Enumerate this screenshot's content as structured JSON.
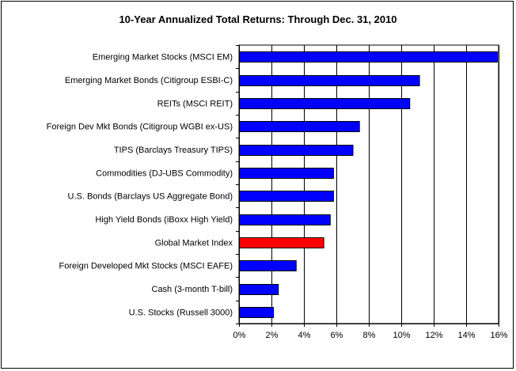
{
  "chart_data": {
    "type": "bar",
    "orientation": "horizontal",
    "title": "10-Year Annualized Total Returns: Through Dec. 31, 2010",
    "xlabel": "",
    "ylabel": "",
    "categories": [
      "Emerging Market Stocks (MSCI EM)",
      "Emerging Market Bonds (Citigroup ESBI-C)",
      "REITs (MSCI REIT)",
      "Foreign Dev Mkt Bonds (Citigroup WGBI ex-US)",
      "TIPS (Barclays Treasury TIPS)",
      "Commodities (DJ-UBS Commodity)",
      "U.S. Bonds (Barclays US Aggregate Bond)",
      "High Yield Bonds (iBoxx High Yield)",
      "Global Market Index",
      "Foreign Developed Mkt Stocks (MSCI EAFE)",
      "Cash  (3-month T-bill)",
      "U.S. Stocks (Russell 3000)"
    ],
    "values": [
      15.9,
      11.1,
      10.5,
      7.4,
      7.0,
      5.8,
      5.8,
      5.6,
      5.2,
      3.5,
      2.4,
      2.1
    ],
    "xlim": [
      0,
      16
    ],
    "x_ticks": [
      0,
      2,
      4,
      6,
      8,
      10,
      12,
      14,
      16
    ],
    "x_tick_labels": [
      "0%",
      "2%",
      "4%",
      "6%",
      "8%",
      "10%",
      "12%",
      "14%",
      "16%"
    ],
    "grid": "vertical",
    "legend": "none",
    "colors": {
      "bar": "#0000ff",
      "highlight": "#ff0000",
      "highlight_category": "Global Market Index",
      "outline": "#000000"
    }
  }
}
